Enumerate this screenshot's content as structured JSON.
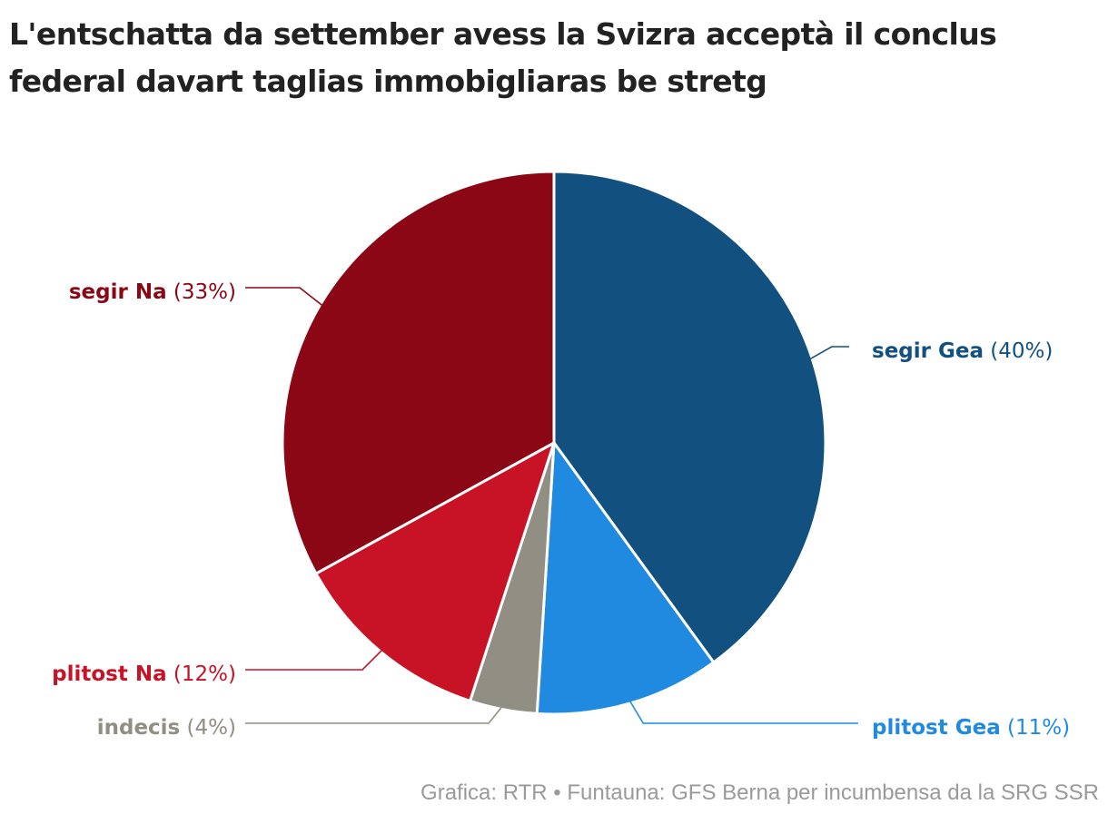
{
  "title": "L'entschatta da settember avess la Svizra acceptà il conclus federal davart taglias immobigliaras be stretg",
  "source": "Grafica: RTR • Funtauna: GFS Berna per incumbensa da la SRG SSR",
  "chart_data": {
    "type": "pie",
    "start": "12 o'clock, clockwise",
    "slices": [
      {
        "label": "segir Gea",
        "pct_label": "(40%)",
        "value": 40,
        "color": "#12507f"
      },
      {
        "label": "plitost Gea",
        "pct_label": "(11%)",
        "value": 11,
        "color": "#1f8ae0"
      },
      {
        "label": "indecis",
        "pct_label": "(4%)",
        "value": 4,
        "color": "#918f83"
      },
      {
        "label": "plitost Na",
        "pct_label": "(12%)",
        "value": 12,
        "color": "#c81226"
      },
      {
        "label": "segir Na",
        "pct_label": "(33%)",
        "value": 33,
        "color": "#8b0715"
      }
    ]
  }
}
